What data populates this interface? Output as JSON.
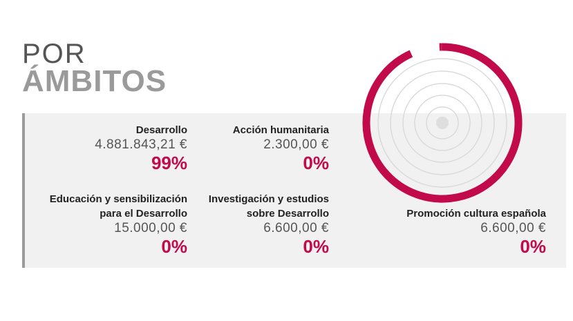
{
  "header": {
    "line1": "POR",
    "line2": "ÁMBITOS"
  },
  "colors": {
    "accent": "#c2094a",
    "panel_bg": "#f1f1f1",
    "panel_bar": "#9b9b9b",
    "ring_guides": "#d9d9d9"
  },
  "chart_data": {
    "type": "pie",
    "title": "",
    "categories": [
      "Desarrollo",
      "Acción humanitaria",
      "Educación y sensibilización para el Desarrollo",
      "Investigación y estudios sobre Desarrollo",
      "Promoción cultura española"
    ],
    "values": [
      4881843.21,
      2300.0,
      15000.0,
      6600.0,
      6600.0
    ],
    "labels": {
      "desarrollo": {
        "name": "Desarrollo",
        "amount": "4.881.843,21 €",
        "pct": "99%"
      },
      "humanitaria": {
        "name": "Acción humanitaria",
        "amount": "2.300,00 €",
        "pct": "0%"
      },
      "educacion": {
        "name_line1": "Educación y sensibilización",
        "name_line2": "para el Desarrollo",
        "amount": "15.000,00 €",
        "pct": "0%"
      },
      "investigacion": {
        "name_line1": "Investigación y estudios",
        "name_line2": "sobre Desarrollo",
        "amount": "6.600,00 €",
        "pct": "0%"
      },
      "promocion": {
        "name": "Promoción cultura española",
        "amount": "6.600,00 €",
        "pct": "0%"
      }
    }
  }
}
